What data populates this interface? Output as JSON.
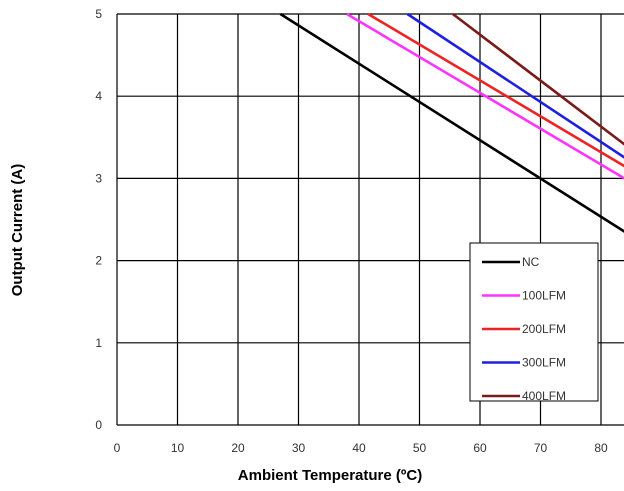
{
  "chart_data": {
    "type": "line",
    "title": "",
    "xlabel": "Ambient Temperature (ºC)",
    "ylabel": "Output Current (A)",
    "xlim": [
      0,
      85
    ],
    "ylim": [
      0,
      5
    ],
    "xticks": [
      0,
      10,
      20,
      30,
      40,
      50,
      60,
      70,
      80
    ],
    "yticks": [
      0,
      1,
      2,
      3,
      4,
      5
    ],
    "grid": true,
    "legend_position": "bottom-right",
    "series": [
      {
        "name": "NC",
        "color": "#000000",
        "x": [
          27,
          85
        ],
        "y": [
          5,
          2.3
        ]
      },
      {
        "name": "100LFM",
        "color": "#ff33ff",
        "x": [
          38,
          85
        ],
        "y": [
          5,
          2.95
        ]
      },
      {
        "name": "200LFM",
        "color": "#ee2222",
        "x": [
          41.5,
          85
        ],
        "y": [
          5,
          3.1
        ]
      },
      {
        "name": "300LFM",
        "color": "#1f1fe0",
        "x": [
          48,
          85
        ],
        "y": [
          5,
          3.2
        ]
      },
      {
        "name": "400LFM",
        "color": "#7a1a1a",
        "x": [
          55.5,
          85
        ],
        "y": [
          5,
          3.35
        ]
      }
    ]
  }
}
